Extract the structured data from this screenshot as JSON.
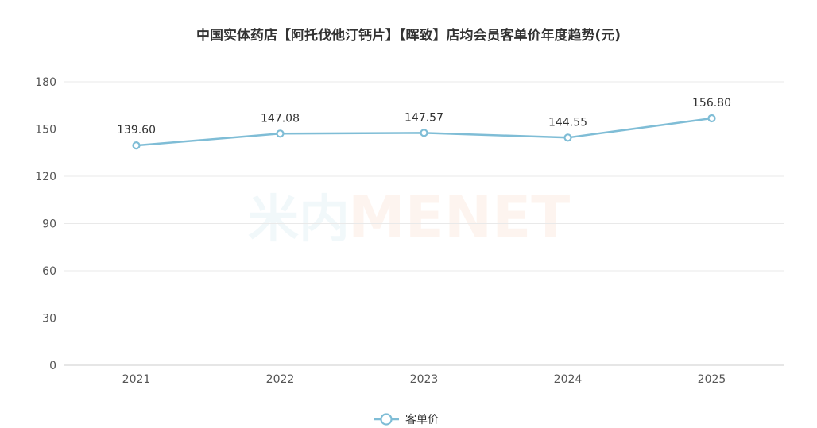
{
  "chart_data": {
    "type": "line",
    "title": "中国实体药店【阿托伐他汀钙片】【晖致】店均会员客单价年度趋势(元)",
    "categories": [
      "2021",
      "2022",
      "2023",
      "2024",
      "2025"
    ],
    "series": [
      {
        "name": "客单价",
        "values": [
          139.6,
          147.08,
          147.57,
          144.55,
          156.8
        ],
        "labels": [
          "139.60",
          "147.08",
          "147.57",
          "144.55",
          "156.80"
        ],
        "color": "#7fbdd6"
      }
    ],
    "ylim": [
      0,
      180
    ],
    "yticks": [
      "0",
      "30",
      "60",
      "90",
      "120",
      "150",
      "180"
    ],
    "grid": true,
    "legend": "bottom-center"
  },
  "watermark": {
    "cn": "米内",
    "en": "MENET"
  }
}
